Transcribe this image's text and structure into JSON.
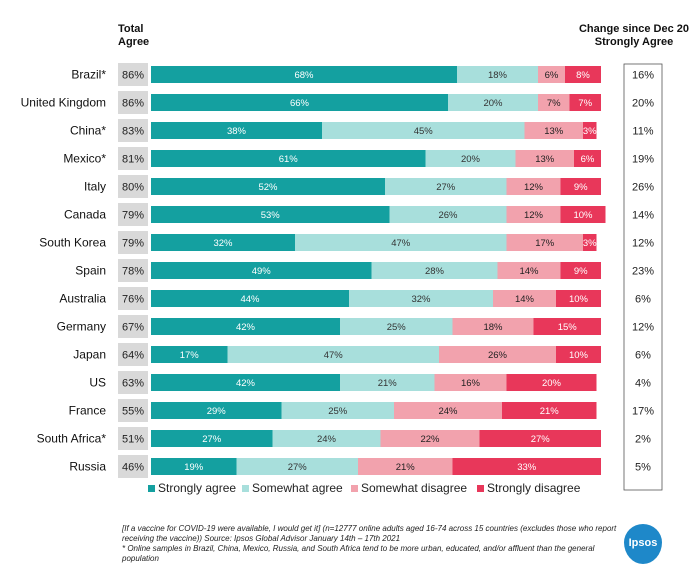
{
  "colors": {
    "strongly_agree": "#14a0a0",
    "somewhat_agree": "#a8dfdc",
    "somewhat_disagree": "#f2a2ad",
    "strongly_disagree": "#e8375a",
    "total_box": "#d9d9d9",
    "logo": "#1e88c9"
  },
  "headers": {
    "total_agree_line1": "Total",
    "total_agree_line2": "Agree",
    "change_line1": "Change since Dec 20",
    "change_line2": "Strongly Agree"
  },
  "chart_data": {
    "type": "bar",
    "orientation": "horizontal-stacked",
    "categories": [
      "Brazil*",
      "United Kingdom",
      "China*",
      "Mexico*",
      "Italy",
      "Canada",
      "South Korea",
      "Spain",
      "Australia",
      "Germany",
      "Japan",
      "US",
      "France",
      "South Africa*",
      "Russia"
    ],
    "series": [
      {
        "name": "Strongly agree",
        "values": [
          68,
          66,
          38,
          61,
          52,
          53,
          32,
          49,
          44,
          42,
          17,
          42,
          29,
          27,
          19
        ]
      },
      {
        "name": "Somewhat agree",
        "values": [
          18,
          20,
          45,
          20,
          27,
          26,
          47,
          28,
          32,
          25,
          47,
          21,
          25,
          24,
          27
        ]
      },
      {
        "name": "Somewhat disagree",
        "values": [
          6,
          7,
          13,
          13,
          12,
          12,
          17,
          14,
          14,
          18,
          26,
          16,
          24,
          22,
          21
        ]
      },
      {
        "name": "Strongly disagree",
        "values": [
          8,
          7,
          3,
          6,
          9,
          10,
          3,
          9,
          10,
          15,
          10,
          20,
          21,
          27,
          33
        ]
      }
    ],
    "total_agree": [
      86,
      86,
      83,
      81,
      80,
      79,
      79,
      78,
      76,
      67,
      64,
      63,
      55,
      51,
      46
    ],
    "change_since_dec20_strongly_agree": [
      16,
      20,
      11,
      19,
      26,
      14,
      12,
      23,
      6,
      12,
      6,
      4,
      17,
      2,
      5
    ],
    "value_suffix": "%",
    "legend_position": "bottom",
    "xlim": [
      0,
      100
    ]
  },
  "footnote": {
    "line1": "[If a vaccine for COVID-19 were available, I would get it] (n=12777 online adults aged 16-74 across 15 countries (excludes those who report receiving the vaccine)) Source: Ipsos Global Advisor January 14th – 17th 2021",
    "line2": "* Online samples in Brazil, China, Mexico, Russia, and South Africa tend to be more urban, educated, and/or affluent than the general population"
  },
  "logo_text": "Ipsos"
}
